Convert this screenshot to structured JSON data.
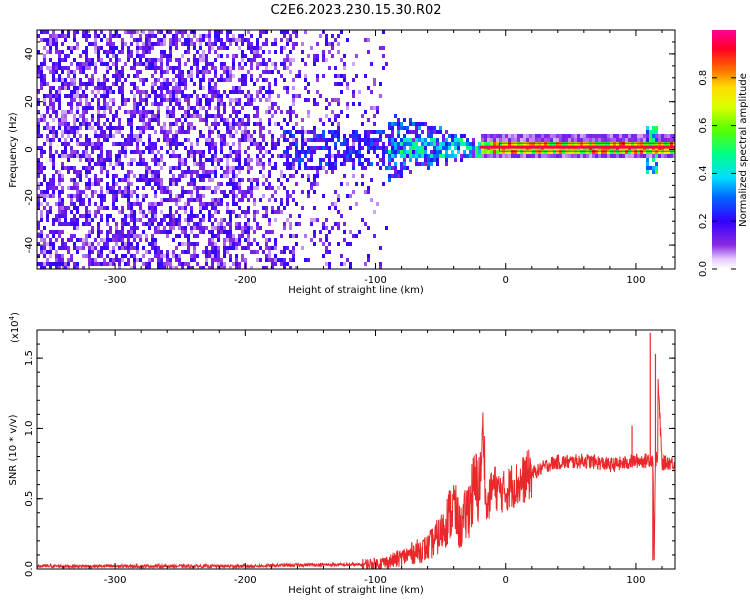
{
  "title": "C2E6.2023.230.15.30.R02",
  "colors": {
    "snr_line": "#e8282a",
    "frame": "#000000"
  },
  "chart_data": [
    {
      "type": "heatmap",
      "name": "spectrogram",
      "xlabel": "Height of straight line (km)",
      "ylabel": "Frequency (Hz)",
      "xlim": [
        -360,
        130
      ],
      "ylim": [
        -50,
        50
      ],
      "xticks": [
        "-300",
        "-200",
        "-100",
        "0",
        "100"
      ],
      "xtick_values": [
        -300,
        -200,
        -100,
        0,
        100
      ],
      "yticks": [
        "40",
        "20",
        "0",
        "-20",
        "-40"
      ],
      "ytick_values": [
        40,
        20,
        0,
        -20,
        -40
      ],
      "colorbar": {
        "label": "Normalized spectral amplitude",
        "range": [
          0,
          1
        ],
        "ticks": [
          "0.0",
          "0.2",
          "0.4",
          "0.6",
          "0.8"
        ],
        "tick_values": [
          0.0,
          0.2,
          0.4,
          0.6,
          0.8
        ],
        "colormap": "rainbow (white-purple-blue-cyan-green-yellow-red-magenta)"
      },
      "features": {
        "noise_region_x": [
          -360,
          -90
        ],
        "transition_region_x": [
          -90,
          -20
        ],
        "carrier_frequency_hz": 1,
        "carrier_amplitude": 0.95,
        "spike_x": 112
      }
    },
    {
      "type": "line",
      "name": "snr",
      "xlabel": "Height of straight line (km)",
      "ylabel": "SNR (10 * v/v)",
      "y_multiplier_label": "(x10",
      "y_multiplier_exp": "4",
      "y_multiplier_close": ")",
      "xlim": [
        -360,
        130
      ],
      "ylim": [
        0,
        17000
      ],
      "xticks": [
        "-300",
        "-200",
        "-100",
        "0",
        "100"
      ],
      "xtick_values": [
        -300,
        -200,
        -100,
        0,
        100
      ],
      "yticks": [
        "0.0",
        "0.5",
        "1.0",
        "1.5"
      ],
      "ytick_values": [
        0,
        5000,
        10000,
        15000
      ],
      "series": [
        {
          "color": "#e8282a",
          "x": [
            -360,
            -300,
            -250,
            -200,
            -150,
            -130,
            -110,
            -100,
            -90,
            -80,
            -70,
            -60,
            -50,
            -45,
            -40,
            -35,
            -30,
            -25,
            -20,
            -17,
            -15,
            -10,
            -5,
            0,
            5,
            10,
            15,
            20,
            25,
            30,
            35,
            40,
            50,
            60,
            70,
            80,
            90,
            95,
            100,
            105,
            108,
            110,
            112,
            114,
            116,
            120,
            125,
            130
          ],
          "y": [
            200,
            200,
            200,
            200,
            300,
            300,
            300,
            350,
            500,
            800,
            1200,
            1500,
            2500,
            3500,
            4500,
            2800,
            4000,
            5500,
            6000,
            10000,
            4000,
            6000,
            5500,
            5500,
            6000,
            6000,
            6500,
            6800,
            7000,
            7300,
            7500,
            7600,
            7600,
            7700,
            7600,
            7400,
            7500,
            7600,
            7700,
            7700,
            7700,
            8000,
            16800,
            600,
            15300,
            7500,
            7600,
            7500
          ],
          "spikes": [
            {
              "x": 97,
              "y": 10200
            },
            {
              "x": 111,
              "y": 16800
            },
            {
              "x": 113,
              "y": 600
            },
            {
              "x": 115,
              "y": 15300
            }
          ]
        }
      ]
    }
  ]
}
